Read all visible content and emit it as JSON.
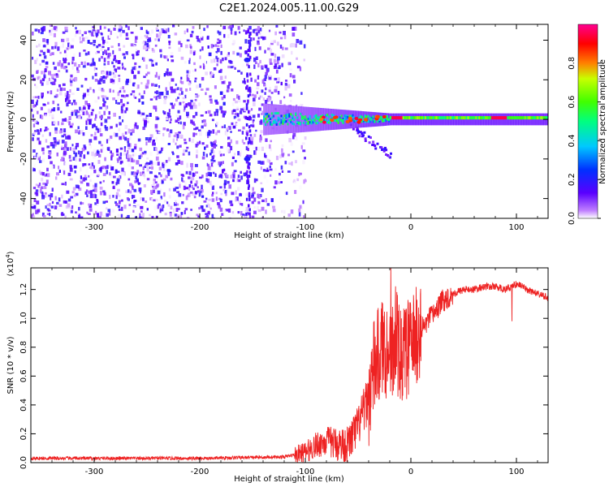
{
  "title": "C2E1.2024.005.11.00.G29",
  "chart_data": [
    {
      "type": "heatmap",
      "xlabel": "Height of straight line (km)",
      "ylabel": "Frequency (Hz)",
      "xlim": [
        -360,
        130
      ],
      "ylim": [
        -50,
        48
      ],
      "x_ticks": [
        -300,
        -200,
        -100,
        0,
        100
      ],
      "y_ticks": [
        -40,
        -20,
        0,
        20,
        40
      ],
      "colorbar": {
        "label": "Normalized spectral amplitude",
        "range": [
          0.0,
          1.0
        ],
        "ticks": [
          "0.0",
          "0.2",
          "0.4",
          "0.6",
          "0.8"
        ],
        "colors": [
          "#ffffff",
          "#c080ff",
          "#5a00ff",
          "#0030ff",
          "#00c8ff",
          "#00ff80",
          "#40ff00",
          "#c8ff00",
          "#ff8000",
          "#ff0000",
          "#ff0090"
        ]
      },
      "features": [
        {
          "x_range": [
            -360,
            -110
          ],
          "freq_range": [
            -50,
            48
          ],
          "amplitude": 0.12
        },
        {
          "x_range": [
            -120,
            130
          ],
          "freq_center": 0,
          "freq_halfwidth": 3,
          "amplitude": 0.6
        },
        {
          "x_range": [
            -20,
            130
          ],
          "freq_center": 0.8,
          "amplitude": 0.95
        },
        {
          "x_range": [
            -45,
            -30
          ],
          "freq_center": -14,
          "amplitude": 0.3
        }
      ]
    },
    {
      "type": "line",
      "xlabel": "Height of straight line (km)",
      "ylabel": "SNR (10 * v/v)",
      "scale_label": "(x10",
      "scale_exp": "4",
      "scale_close": ")",
      "xlim": [
        -360,
        130
      ],
      "ylim": [
        0.0,
        1.35
      ],
      "x_ticks": [
        -300,
        -200,
        -100,
        0,
        100
      ],
      "y_ticks": [
        "0.0",
        "0.2",
        "0.4",
        "0.6",
        "0.8",
        "1.0",
        "1.2"
      ],
      "line_color": "#ee2222",
      "series": [
        {
          "x": [
            -360,
            -300,
            -200,
            -120,
            -100,
            -90,
            -80,
            -70,
            -60,
            -50,
            -40,
            -35,
            -30,
            -25,
            -20,
            -15,
            -10,
            0,
            10,
            20,
            30,
            40,
            50,
            60,
            70,
            80,
            90,
            100,
            110,
            120,
            130
          ],
          "y": [
            0.03,
            0.03,
            0.03,
            0.04,
            0.07,
            0.12,
            0.15,
            0.13,
            0.12,
            0.25,
            0.45,
            0.65,
            0.75,
            0.82,
            0.72,
            0.9,
            0.72,
            0.82,
            0.92,
            1.02,
            1.12,
            1.17,
            1.2,
            1.2,
            1.22,
            1.22,
            1.2,
            1.24,
            1.2,
            1.17,
            1.14
          ]
        }
      ]
    }
  ]
}
